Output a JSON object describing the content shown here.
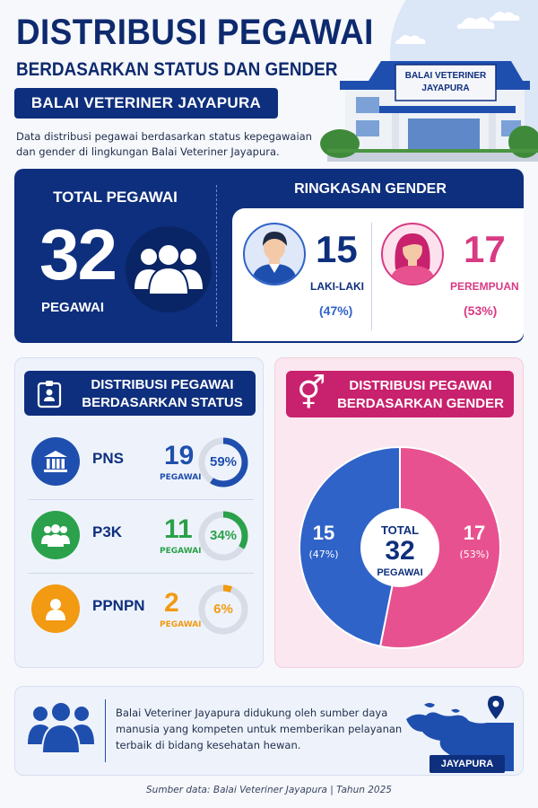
{
  "header": {
    "title": "DISTRIBUSI PEGAWAI",
    "subtitle": "BERDASARKAN STATUS DAN GENDER",
    "org": "BALAI VETERINER JAYAPURA",
    "description": "Data distribusi pegawai berdasarkan status kepegawaian dan gender di lingkungan Balai Veteriner Jayapura.",
    "building_sign": [
      "BALAI VETERINER",
      "JAYAPURA"
    ]
  },
  "total": {
    "label": "TOTAL PEGAWAI",
    "value": "32",
    "unit": "PEGAWAI",
    "icon": "people-group-icon"
  },
  "gender_summary": {
    "title": "RINGKASAN GENDER",
    "male": {
      "value": "15",
      "label": "LAKI-LAKI",
      "pct": "(47%)",
      "icon": "male-avatar-icon"
    },
    "female": {
      "value": "17",
      "label": "PEREMPUAN",
      "pct": "(53%)",
      "icon": "female-avatar-icon"
    }
  },
  "status": {
    "title_line1": "DISTRIBUSI PEGAWAI",
    "title_line2": "BERDASARKAN STATUS",
    "rows": [
      {
        "name": "PNS",
        "value": "19",
        "unit": "PEGAWAI",
        "pct_label": "59%",
        "fraction": 0.59,
        "color": "#1f4fae",
        "icon": "government-building-icon"
      },
      {
        "name": "P3K",
        "value": "11",
        "unit": "PEGAWAI",
        "pct_label": "34%",
        "fraction": 0.34,
        "color": "#2aa14a",
        "icon": "people-icon"
      },
      {
        "name": "PPNPN",
        "value": "2",
        "unit": "PEGAWAI",
        "pct_label": "6%",
        "fraction": 0.06,
        "color": "#f29a12",
        "icon": "person-icon"
      }
    ]
  },
  "gender_dist": {
    "title_line1": "DISTRIBUSI PEGAWAI",
    "title_line2": "BERDASARKAN GENDER",
    "icon": "gender-symbol-icon",
    "center_label": "TOTAL",
    "center_value": "32",
    "center_unit": "PEGAWAI",
    "male": {
      "value": "15",
      "pct": "(47%)",
      "color": "#2f63c8"
    },
    "female": {
      "value": "17",
      "pct": "(53%)",
      "color": "#e8518f"
    }
  },
  "chart_data": {
    "type": "pie",
    "categories": [
      "Laki-laki",
      "Perempuan"
    ],
    "values": [
      15,
      17
    ],
    "percent": [
      47,
      53
    ]
  },
  "footer": {
    "text": "Balai Veteriner Jayapura didukung oleh sumber daya manusia yang kompeten untuk memberikan pelayanan terbaik di bidang kesehatan hewan.",
    "map_label": "JAYAPURA",
    "icons": [
      "people-group-icon",
      "papua-map-icon",
      "location-pin-icon"
    ]
  },
  "source": "Sumber data: Balai Veteriner Jayapura  |  Tahun 2025"
}
